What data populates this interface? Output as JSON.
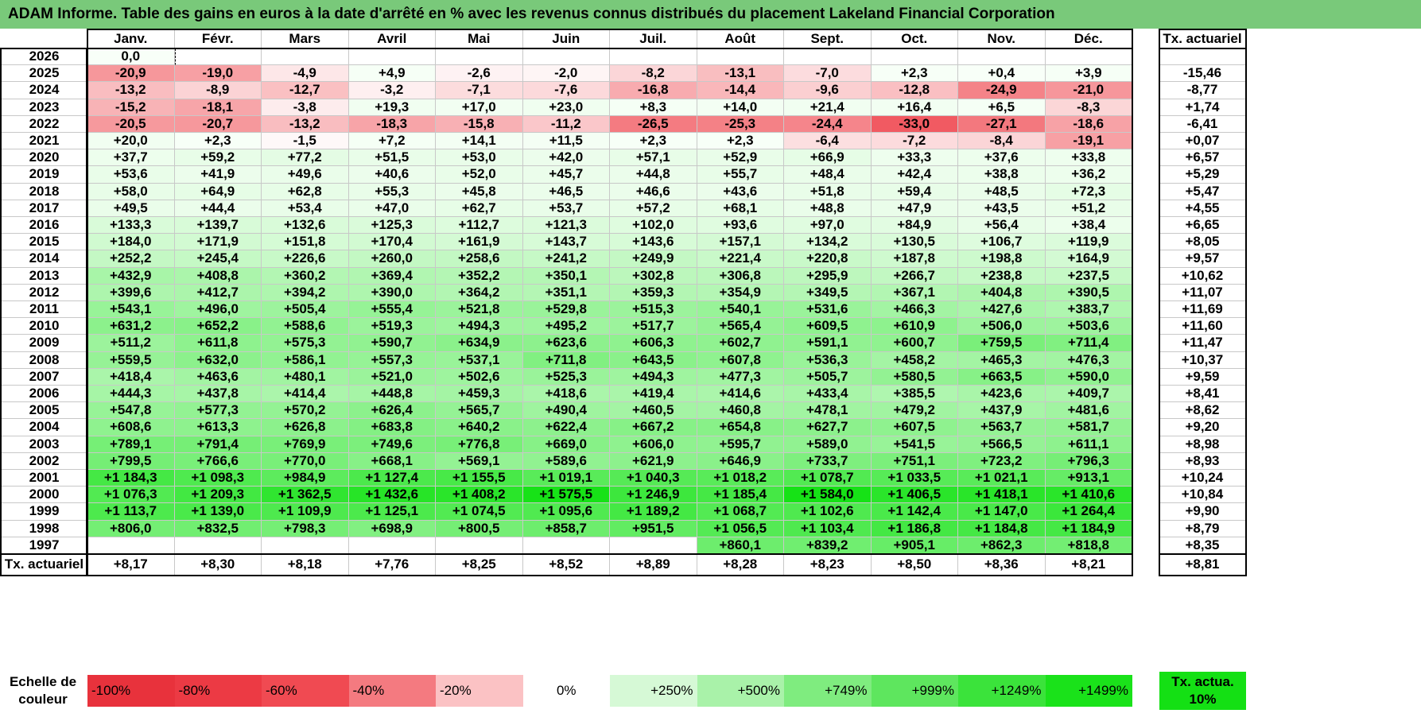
{
  "title": "ADAM Informe. Table des gains en euros à la date d'arrêté en % avec les revenus connus distribués du placement Lakeland Financial Corporation",
  "chart_data": {
    "type": "heatmap",
    "title": "ADAM Informe. Table des gains en euros à la date d'arrêté en % avec les revenus connus distribués du placement Lakeland Financial Corporation",
    "months": [
      "Janv.",
      "Févr.",
      "Mars",
      "Avril",
      "Mai",
      "Juin",
      "Juil.",
      "Août",
      "Sept.",
      "Oct.",
      "Nov.",
      "Déc."
    ],
    "rate_header": "Tx. actuariel",
    "rows": [
      {
        "year": "2026",
        "values": [
          "0,0",
          "",
          "",
          "",
          "",
          "",
          "",
          "",
          "",
          "",
          "",
          ""
        ],
        "rate": ""
      },
      {
        "year": "2025",
        "values": [
          "-20,9",
          "-19,0",
          "-4,9",
          "+4,9",
          "-2,6",
          "-2,0",
          "-8,2",
          "-13,1",
          "-7,0",
          "+2,3",
          "+0,4",
          "+3,9"
        ],
        "rate": "-15,46"
      },
      {
        "year": "2024",
        "values": [
          "-13,2",
          "-8,9",
          "-12,7",
          "-3,2",
          "-7,1",
          "-7,6",
          "-16,8",
          "-14,4",
          "-9,6",
          "-12,8",
          "-24,9",
          "-21,0"
        ],
        "rate": "-8,77"
      },
      {
        "year": "2023",
        "values": [
          "-15,2",
          "-18,1",
          "-3,8",
          "+19,3",
          "+17,0",
          "+23,0",
          "+8,3",
          "+14,0",
          "+21,4",
          "+16,4",
          "+6,5",
          "-8,3"
        ],
        "rate": "+1,74"
      },
      {
        "year": "2022",
        "values": [
          "-20,5",
          "-20,7",
          "-13,2",
          "-18,3",
          "-15,8",
          "-11,2",
          "-26,5",
          "-25,3",
          "-24,4",
          "-33,0",
          "-27,1",
          "-18,6"
        ],
        "rate": "-6,41"
      },
      {
        "year": "2021",
        "values": [
          "+20,0",
          "+2,3",
          "-1,5",
          "+7,2",
          "+14,1",
          "+11,5",
          "+2,3",
          "+2,3",
          "-6,4",
          "-7,2",
          "-8,4",
          "-19,1"
        ],
        "rate": "+0,07"
      },
      {
        "year": "2020",
        "values": [
          "+37,7",
          "+59,2",
          "+77,2",
          "+51,5",
          "+53,0",
          "+42,0",
          "+57,1",
          "+52,9",
          "+66,9",
          "+33,3",
          "+37,6",
          "+33,8"
        ],
        "rate": "+6,57"
      },
      {
        "year": "2019",
        "values": [
          "+53,6",
          "+41,9",
          "+49,6",
          "+40,6",
          "+52,0",
          "+45,7",
          "+44,8",
          "+55,7",
          "+48,4",
          "+42,4",
          "+38,8",
          "+36,2"
        ],
        "rate": "+5,29"
      },
      {
        "year": "2018",
        "values": [
          "+58,0",
          "+64,9",
          "+62,8",
          "+55,3",
          "+45,8",
          "+46,5",
          "+46,6",
          "+43,6",
          "+51,8",
          "+59,4",
          "+48,5",
          "+72,3"
        ],
        "rate": "+5,47"
      },
      {
        "year": "2017",
        "values": [
          "+49,5",
          "+44,4",
          "+53,4",
          "+47,0",
          "+62,7",
          "+53,7",
          "+57,2",
          "+68,1",
          "+48,8",
          "+47,9",
          "+43,5",
          "+51,2"
        ],
        "rate": "+4,55"
      },
      {
        "year": "2016",
        "values": [
          "+133,3",
          "+139,7",
          "+132,6",
          "+125,3",
          "+112,7",
          "+121,3",
          "+102,0",
          "+93,6",
          "+97,0",
          "+84,9",
          "+56,4",
          "+38,4"
        ],
        "rate": "+6,65"
      },
      {
        "year": "2015",
        "values": [
          "+184,0",
          "+171,9",
          "+151,8",
          "+170,4",
          "+161,9",
          "+143,7",
          "+143,6",
          "+157,1",
          "+134,2",
          "+130,5",
          "+106,7",
          "+119,9"
        ],
        "rate": "+8,05"
      },
      {
        "year": "2014",
        "values": [
          "+252,2",
          "+245,4",
          "+226,6",
          "+260,0",
          "+258,6",
          "+241,2",
          "+249,9",
          "+221,4",
          "+220,8",
          "+187,8",
          "+198,8",
          "+164,9"
        ],
        "rate": "+9,57"
      },
      {
        "year": "2013",
        "values": [
          "+432,9",
          "+408,8",
          "+360,2",
          "+369,4",
          "+352,2",
          "+350,1",
          "+302,8",
          "+306,8",
          "+295,9",
          "+266,7",
          "+238,8",
          "+237,5"
        ],
        "rate": "+10,62"
      },
      {
        "year": "2012",
        "values": [
          "+399,6",
          "+412,7",
          "+394,2",
          "+390,0",
          "+364,2",
          "+351,1",
          "+359,3",
          "+354,9",
          "+349,5",
          "+367,1",
          "+404,8",
          "+390,5"
        ],
        "rate": "+11,07"
      },
      {
        "year": "2011",
        "values": [
          "+543,1",
          "+496,0",
          "+505,4",
          "+555,4",
          "+521,8",
          "+529,8",
          "+515,3",
          "+540,1",
          "+531,6",
          "+466,3",
          "+427,6",
          "+383,7"
        ],
        "rate": "+11,69"
      },
      {
        "year": "2010",
        "values": [
          "+631,2",
          "+652,2",
          "+588,6",
          "+519,3",
          "+494,3",
          "+495,2",
          "+517,7",
          "+565,4",
          "+609,5",
          "+610,9",
          "+506,0",
          "+503,6"
        ],
        "rate": "+11,60"
      },
      {
        "year": "2009",
        "values": [
          "+511,2",
          "+611,8",
          "+575,3",
          "+590,7",
          "+634,9",
          "+623,6",
          "+606,3",
          "+602,7",
          "+591,1",
          "+600,7",
          "+759,5",
          "+711,4"
        ],
        "rate": "+11,47"
      },
      {
        "year": "2008",
        "values": [
          "+559,5",
          "+632,0",
          "+586,1",
          "+557,3",
          "+537,1",
          "+711,8",
          "+643,5",
          "+607,8",
          "+536,3",
          "+458,2",
          "+465,3",
          "+476,3"
        ],
        "rate": "+10,37"
      },
      {
        "year": "2007",
        "values": [
          "+418,4",
          "+463,6",
          "+480,1",
          "+521,0",
          "+502,6",
          "+525,3",
          "+494,3",
          "+477,3",
          "+505,7",
          "+580,5",
          "+663,5",
          "+590,0"
        ],
        "rate": "+9,59"
      },
      {
        "year": "2006",
        "values": [
          "+444,3",
          "+437,8",
          "+414,4",
          "+448,8",
          "+459,3",
          "+418,6",
          "+419,4",
          "+414,6",
          "+433,4",
          "+385,5",
          "+423,6",
          "+409,7"
        ],
        "rate": "+8,41"
      },
      {
        "year": "2005",
        "values": [
          "+547,8",
          "+577,3",
          "+570,2",
          "+626,4",
          "+565,7",
          "+490,4",
          "+460,5",
          "+460,8",
          "+478,1",
          "+479,2",
          "+437,9",
          "+481,6"
        ],
        "rate": "+8,62"
      },
      {
        "year": "2004",
        "values": [
          "+608,6",
          "+613,3",
          "+626,8",
          "+683,8",
          "+640,2",
          "+622,4",
          "+667,2",
          "+654,8",
          "+627,7",
          "+607,5",
          "+563,7",
          "+581,7"
        ],
        "rate": "+9,20"
      },
      {
        "year": "2003",
        "values": [
          "+789,1",
          "+791,4",
          "+769,9",
          "+749,6",
          "+776,8",
          "+669,0",
          "+606,0",
          "+595,7",
          "+589,0",
          "+541,5",
          "+566,5",
          "+611,1"
        ],
        "rate": "+8,98"
      },
      {
        "year": "2002",
        "values": [
          "+799,5",
          "+766,6",
          "+770,0",
          "+668,1",
          "+569,1",
          "+589,6",
          "+621,9",
          "+646,9",
          "+733,7",
          "+751,1",
          "+723,2",
          "+796,3"
        ],
        "rate": "+8,93"
      },
      {
        "year": "2001",
        "values": [
          "+1 184,3",
          "+1 098,3",
          "+984,9",
          "+1 127,4",
          "+1 155,5",
          "+1 019,1",
          "+1 040,3",
          "+1 018,2",
          "+1 078,7",
          "+1 033,5",
          "+1 021,1",
          "+913,1"
        ],
        "rate": "+10,24"
      },
      {
        "year": "2000",
        "values": [
          "+1 076,3",
          "+1 209,3",
          "+1 362,5",
          "+1 432,6",
          "+1 408,2",
          "+1 575,5",
          "+1 246,9",
          "+1 185,4",
          "+1 584,0",
          "+1 406,5",
          "+1 418,1",
          "+1 410,6"
        ],
        "rate": "+10,84"
      },
      {
        "year": "1999",
        "values": [
          "+1 113,7",
          "+1 139,0",
          "+1 109,9",
          "+1 125,1",
          "+1 074,5",
          "+1 095,6",
          "+1 189,2",
          "+1 068,7",
          "+1 102,6",
          "+1 142,4",
          "+1 147,0",
          "+1 264,4"
        ],
        "rate": "+9,90"
      },
      {
        "year": "1998",
        "values": [
          "+806,0",
          "+832,5",
          "+798,3",
          "+698,9",
          "+800,5",
          "+858,7",
          "+951,5",
          "+1 056,5",
          "+1 103,4",
          "+1 186,8",
          "+1 184,8",
          "+1 184,9"
        ],
        "rate": "+8,79"
      },
      {
        "year": "1997",
        "values": [
          "",
          "",
          "",
          "",
          "",
          "",
          "",
          "+860,1",
          "+839,2",
          "+905,1",
          "+862,3",
          "+818,8"
        ],
        "rate": "+8,35"
      }
    ],
    "footer": {
      "label": "Tx. actuariel",
      "values": [
        "+8,17",
        "+8,30",
        "+8,18",
        "+7,76",
        "+8,25",
        "+8,52",
        "+8,89",
        "+8,28",
        "+8,23",
        "+8,50",
        "+8,36",
        "+8,21"
      ],
      "rate": "+8,81"
    },
    "color_scale": {
      "label": "Echelle de couleur",
      "stops": [
        {
          "label": "-100%",
          "color": "#e8323c"
        },
        {
          "label": "-80%",
          "color": "#ec3a44"
        },
        {
          "label": "-60%",
          "color": "#f04a52"
        },
        {
          "label": "-40%",
          "color": "#f47a80"
        },
        {
          "label": "-20%",
          "color": "#fbc2c4"
        },
        {
          "label": "0%",
          "color": "#ffffff"
        },
        {
          "label": "+250%",
          "color": "#d6f9d6"
        },
        {
          "label": "+500%",
          "color": "#a9f2a9"
        },
        {
          "label": "+749%",
          "color": "#7fec7f"
        },
        {
          "label": "+999%",
          "color": "#5ee65e"
        },
        {
          "label": "+1249%",
          "color": "#3be33b"
        },
        {
          "label": "+1499%",
          "color": "#1ae21a"
        }
      ],
      "reference_label": "Tx. actua. 10%",
      "reference_color": "#14e014"
    }
  }
}
